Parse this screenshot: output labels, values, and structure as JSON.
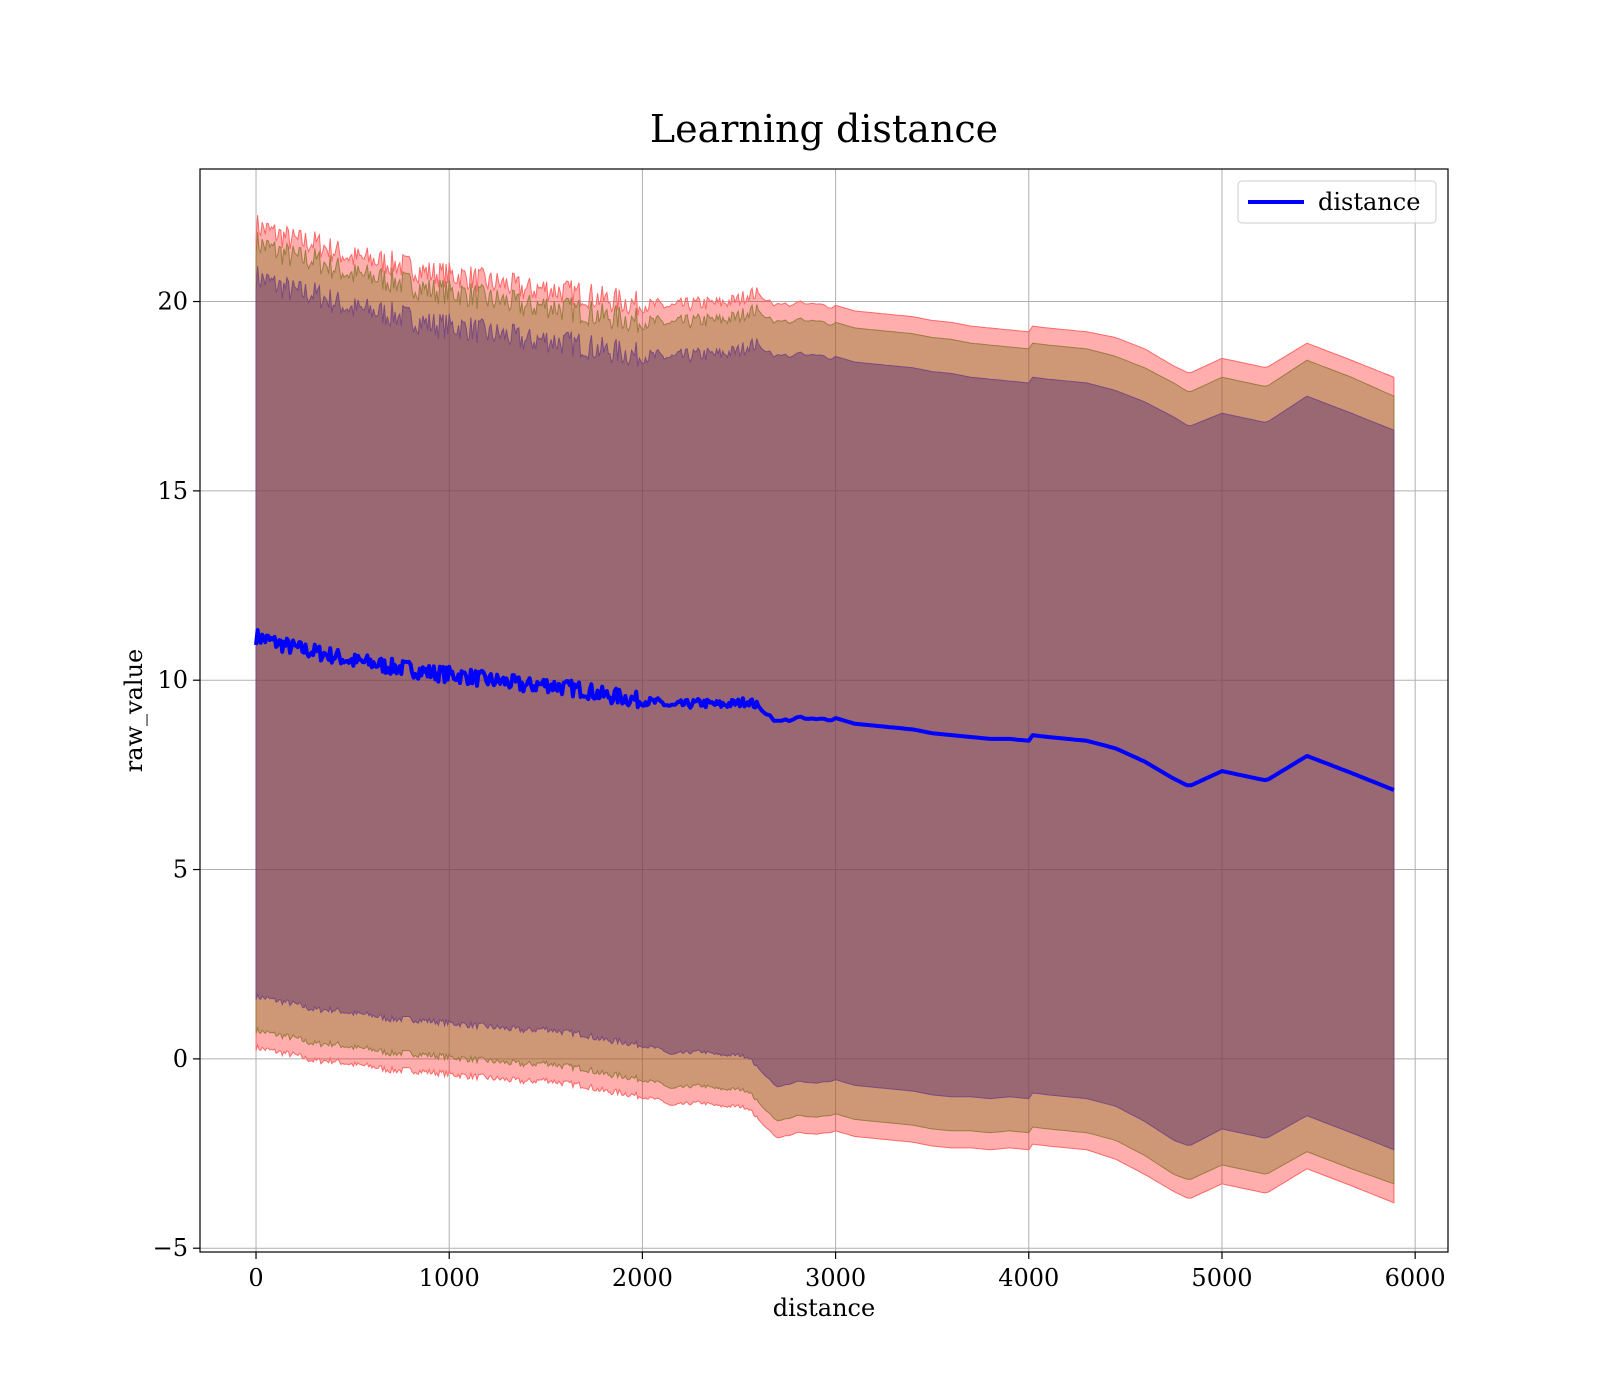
{
  "chart_data": {
    "type": "line",
    "title": "Learning distance",
    "xlabel": "distance",
    "ylabel": "raw_value",
    "xlim": [
      -290,
      6170
    ],
    "ylim": [
      -5.1,
      23.5
    ],
    "xticks": [
      0,
      1000,
      2000,
      3000,
      4000,
      5000,
      6000
    ],
    "yticks": [
      -5,
      0,
      5,
      10,
      15,
      20
    ],
    "ytick_labels": [
      "−5",
      "0",
      "5",
      "10",
      "15",
      "20"
    ],
    "grid": true,
    "legend": {
      "placement": "top-right",
      "entries": [
        "distance"
      ]
    },
    "series": [
      {
        "name": "distance",
        "color": "#0000ff",
        "x": [
          0,
          100,
          200,
          300,
          400,
          500,
          600,
          700,
          800,
          900,
          1000,
          1100,
          1200,
          1300,
          1400,
          1500,
          1600,
          1700,
          1800,
          1900,
          2000,
          2100,
          2150,
          2200,
          2300,
          2400,
          2500,
          2550,
          2600,
          2650,
          2700,
          2800,
          2900,
          3000,
          3100,
          3200,
          3300,
          3400,
          3500,
          3600,
          3700,
          3800,
          3900,
          4000,
          4020,
          4100,
          4200,
          4300,
          4450,
          4600,
          4750,
          4830,
          5000,
          5230,
          5440,
          5670,
          5890
        ],
        "y": [
          11.15,
          11.0,
          10.85,
          10.75,
          10.65,
          10.5,
          10.45,
          10.35,
          10.3,
          10.2,
          10.15,
          10.1,
          10.0,
          9.95,
          9.85,
          9.9,
          9.8,
          9.75,
          9.6,
          9.55,
          9.45,
          9.4,
          9.3,
          9.35,
          9.4,
          9.35,
          9.4,
          9.45,
          9.3,
          9.1,
          8.9,
          9.0,
          8.95,
          9.0,
          8.85,
          8.8,
          8.75,
          8.7,
          8.6,
          8.55,
          8.5,
          8.45,
          8.45,
          8.4,
          8.55,
          8.5,
          8.45,
          8.4,
          8.2,
          7.85,
          7.4,
          7.2,
          7.6,
          7.35,
          8.0,
          7.55,
          7.1
        ],
        "band_inner": [
          9.5,
          9.45,
          9.4,
          9.45,
          9.35,
          9.3,
          9.3,
          9.3,
          9.25,
          9.2,
          9.2,
          9.2,
          9.15,
          9.15,
          9.1,
          9.1,
          9.1,
          9.1,
          9.1,
          9.1,
          9.1,
          9.15,
          9.2,
          9.2,
          9.2,
          9.25,
          9.3,
          9.4,
          9.55,
          9.6,
          9.65,
          9.6,
          9.6,
          9.55,
          9.55,
          9.55,
          9.55,
          9.55,
          9.55,
          9.55,
          9.5,
          9.5,
          9.45,
          9.45,
          9.45,
          9.45,
          9.45,
          9.45,
          9.45,
          9.5,
          9.55,
          9.5,
          9.45,
          9.45,
          9.5,
          9.5,
          9.5
        ],
        "band_middle": [
          10.4,
          10.35,
          10.3,
          10.35,
          10.25,
          10.2,
          10.2,
          10.2,
          10.15,
          10.1,
          10.1,
          10.1,
          10.05,
          10.05,
          10.0,
          10.0,
          10.0,
          10.0,
          10.0,
          10.0,
          10.0,
          10.05,
          10.1,
          10.1,
          10.1,
          10.15,
          10.2,
          10.3,
          10.45,
          10.5,
          10.55,
          10.5,
          10.5,
          10.45,
          10.45,
          10.45,
          10.45,
          10.45,
          10.45,
          10.45,
          10.4,
          10.4,
          10.35,
          10.35,
          10.35,
          10.35,
          10.35,
          10.35,
          10.35,
          10.4,
          10.45,
          10.4,
          10.4,
          10.4,
          10.45,
          10.45,
          10.4
        ],
        "band_outer": [
          10.85,
          10.8,
          10.75,
          10.8,
          10.7,
          10.65,
          10.65,
          10.65,
          10.6,
          10.55,
          10.55,
          10.55,
          10.5,
          10.5,
          10.45,
          10.45,
          10.45,
          10.45,
          10.45,
          10.45,
          10.45,
          10.5,
          10.55,
          10.55,
          10.55,
          10.6,
          10.65,
          10.75,
          10.9,
          10.95,
          11.0,
          10.95,
          10.95,
          10.9,
          10.9,
          10.9,
          10.9,
          10.9,
          10.9,
          10.9,
          10.85,
          10.85,
          10.8,
          10.8,
          10.8,
          10.8,
          10.8,
          10.8,
          10.85,
          10.9,
          10.9,
          10.9,
          10.9,
          10.9,
          10.9,
          10.9,
          10.9
        ]
      }
    ]
  }
}
